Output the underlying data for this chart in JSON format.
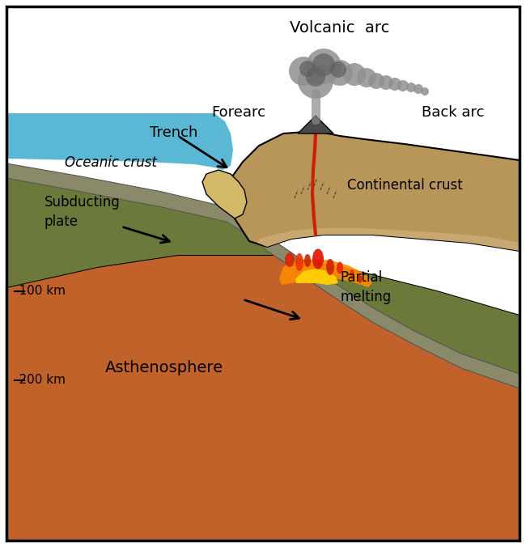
{
  "bg_color": "#ffffff",
  "border_color": "#000000",
  "ocean_color": "#5bb8d4",
  "ocean_deep_color": "#4aa8c4",
  "trench_fill_color": "#d4b96a",
  "oceanic_crust_color": "#8a8a6a",
  "subducting_plate_color": "#6b7a3a",
  "slab_boundary_color": "#a0a090",
  "asthenosphere_color": "#c0622a",
  "mantle_wedge_color": "#6b7a3a",
  "continental_crust_color": "#b8965a",
  "continental_lower_color": "#c8a870",
  "smoke_color": "#909090",
  "lava_red": "#dd2200",
  "lava_orange": "#ff8800",
  "lava_yellow": "#ffcc00",
  "labels": {
    "volcanic_arc": "Volcanic  arc",
    "forearc": "Forearc",
    "back_arc": "Back arc",
    "trench": "Trench",
    "oceanic_crust": "Oceanic crust",
    "subducting_plate": "Subducting\nplate",
    "partial_melting": "Partial\nmelting",
    "asthenosphere": "Asthenosphere",
    "depth_100": "-100 km",
    "depth_200": "-200 km",
    "continental_crust": "Continental crust"
  },
  "figsize": [
    6.5,
    6.76
  ],
  "dpi": 100
}
